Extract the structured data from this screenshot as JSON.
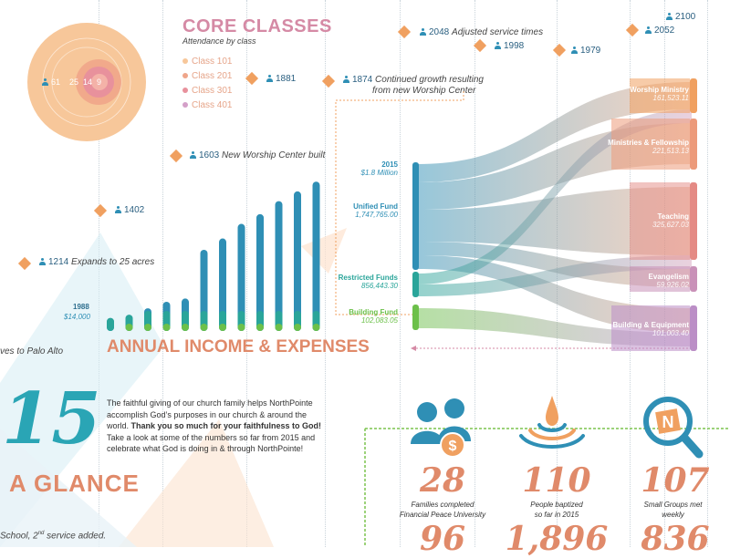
{
  "core_classes": {
    "title": "CORE CLASSES",
    "subtitle": "Attendance by class",
    "circle_values": [
      "61",
      "25",
      "14",
      "9"
    ],
    "legend": [
      {
        "label": "Class 101",
        "color": "#f7c79a"
      },
      {
        "label": "Class 201",
        "color": "#efa58a"
      },
      {
        "label": "Class 301",
        "color": "#e8919c"
      },
      {
        "label": "Class 401",
        "color": "#d4a0c8"
      }
    ]
  },
  "milestones": [
    {
      "value": "2100",
      "text": ""
    },
    {
      "value": "2048",
      "text": "Adjusted service times"
    },
    {
      "value": "2052",
      "text": ""
    },
    {
      "value": "1998",
      "text": ""
    },
    {
      "value": "1979",
      "text": ""
    },
    {
      "value": "1881",
      "text": ""
    },
    {
      "value": "1874",
      "text": "Continued growth resulting",
      "text2": "from new Worship Center"
    },
    {
      "value": "1603",
      "text": "New Worship Center built"
    },
    {
      "value": "1402",
      "text": ""
    },
    {
      "value": "1214",
      "text": "Expands to 25 acres"
    }
  ],
  "partial_texts": {
    "palo_alto": "ves to Palo Alto",
    "school": "School, 2",
    "school_sup": "nd",
    "school_rest": " service added."
  },
  "income": {
    "title": "ANNUAL INCOME & EXPENSES",
    "start_year": "1988",
    "start_amount": "$14,000",
    "bar_fractions": [
      0.08,
      0.1,
      0.14,
      0.18,
      0.2,
      0.5,
      0.57,
      0.66,
      0.72,
      0.8,
      0.86,
      0.92,
      1.0
    ],
    "green_fractions": [
      0,
      0.02,
      0.03,
      0.04,
      0.04,
      0.06,
      0.06,
      0.07,
      0.08,
      0.09,
      0.09,
      0.1,
      0.11
    ]
  },
  "funds": [
    {
      "name": "2015",
      "amount": "$1.8 Million",
      "color": "#2f8fb5"
    },
    {
      "name": "Unified Fund",
      "amount": "1,747,765.00",
      "color": "#2f8fb5"
    },
    {
      "name": "Restricted Funds",
      "amount": "856,443.30",
      "color": "#2aa59a"
    },
    {
      "name": "Building Fund",
      "amount": "102,083.05",
      "color": "#6cc04a"
    }
  ],
  "expenses": [
    {
      "name": "Worship Ministry",
      "amount": "161,523.11",
      "color": "#f0a060"
    },
    {
      "name": "Ministries & Fellowship",
      "amount": "221,513.13",
      "color": "#ec9a7a"
    },
    {
      "name": "Teaching",
      "amount": "325,627.03",
      "color": "#e48a84"
    },
    {
      "name": "Evangelism",
      "amount": "59,926.02",
      "color": "#c991b8"
    },
    {
      "name": "Building & Equipment",
      "amount": "101,003.40",
      "color": "#bb8ec6"
    }
  ],
  "glance": {
    "year_digits": "15",
    "heading": "A GLANCE",
    "para_1": "The faithful giving of our church family helps NorthPointe accomplish God’s purposes in our church & around the world.",
    "para_bold": "Thank you so much for your faithfulness to God!",
    "para_2": "Take a look at some of the numbers so far from 2015 and celebrate what God is doing in & through NorthPointe!"
  },
  "stats": [
    {
      "value": "28",
      "line1": "Families completed",
      "line2": "Financial Peace University",
      "next_value": "96",
      "icon": "family-dollar-icon"
    },
    {
      "value": "110",
      "line1": "People baptized",
      "line2": "so far in 2015",
      "next_value": "1,896",
      "icon": "water-drop-icon"
    },
    {
      "value": "107",
      "line1": "Small Groups met",
      "line2": "weekly",
      "next_value": "836",
      "icon": "magnifier-n-icon"
    }
  ],
  "colors": {
    "blue": "#2f8fb5",
    "teal": "#2aa59a",
    "green": "#6cc04a",
    "orange": "#f0a060",
    "salmon": "#e08a6a",
    "pink": "#d58aa5",
    "purple": "#bb8ec6"
  }
}
